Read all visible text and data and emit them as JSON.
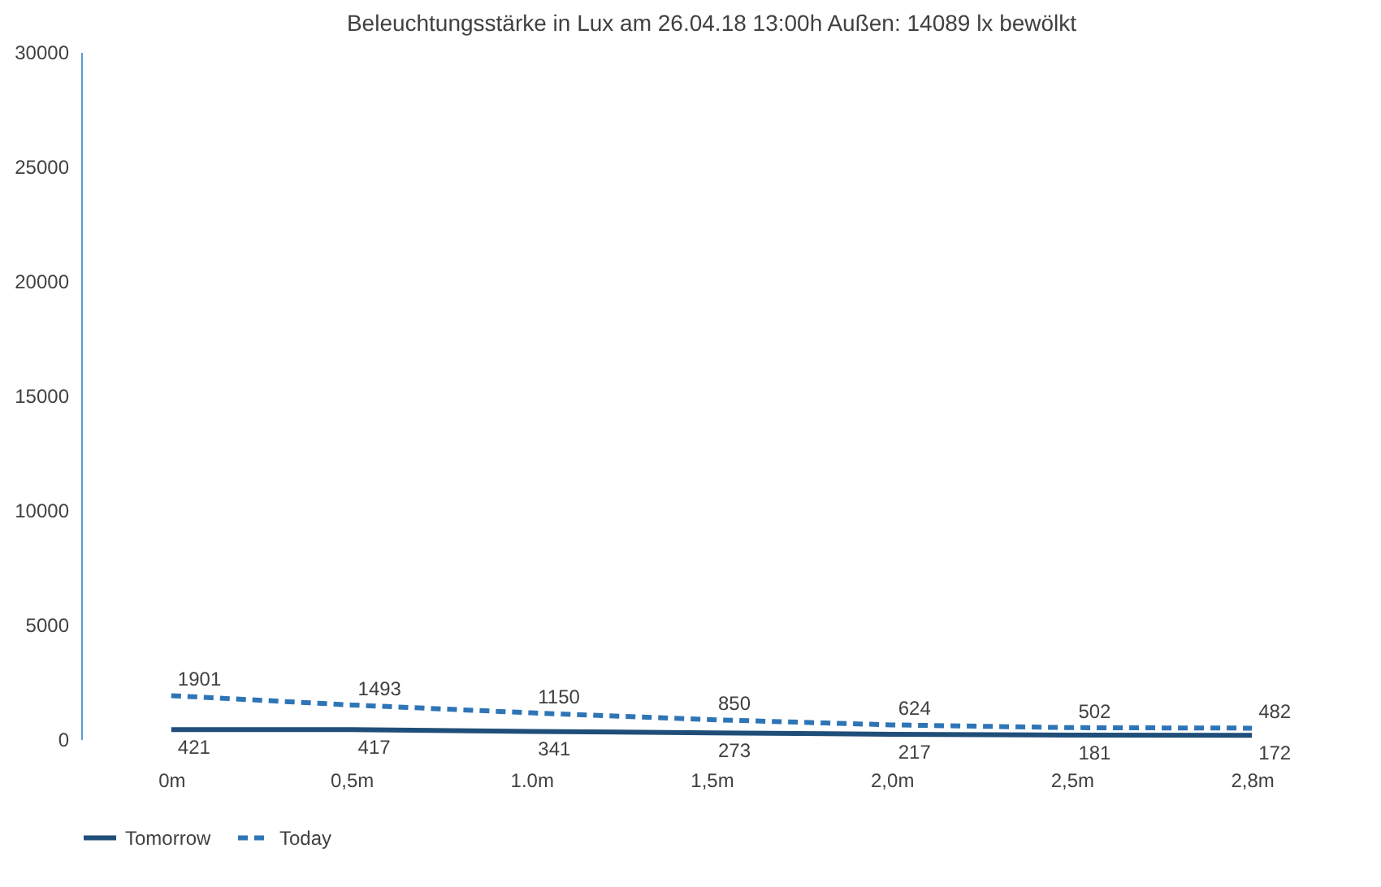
{
  "chart_data": {
    "type": "line",
    "title": "Beleuchtungsstärke in Lux am 26.04.18  13:00h  Außen: 14089 lx   bewölkt",
    "categories": [
      "0m",
      "0,5m",
      "1.0m",
      "1,5m",
      "2,0m",
      "2,5m",
      "2,8m"
    ],
    "series": [
      {
        "name": "Tomorrow",
        "color": "#1f4e79",
        "line_style": "solid",
        "values": [
          421,
          417,
          341,
          273,
          217,
          181,
          172
        ]
      },
      {
        "name": "Today",
        "color": "#2e75b6",
        "line_style": "dashed",
        "values": [
          1901,
          1493,
          1150,
          850,
          624,
          502,
          482
        ]
      }
    ],
    "ylim": [
      0,
      30000
    ],
    "yticks": [
      0,
      5000,
      10000,
      15000,
      20000,
      25000,
      30000
    ],
    "grid": false,
    "legend": "bottom",
    "marker": "none",
    "data_labels": true
  }
}
